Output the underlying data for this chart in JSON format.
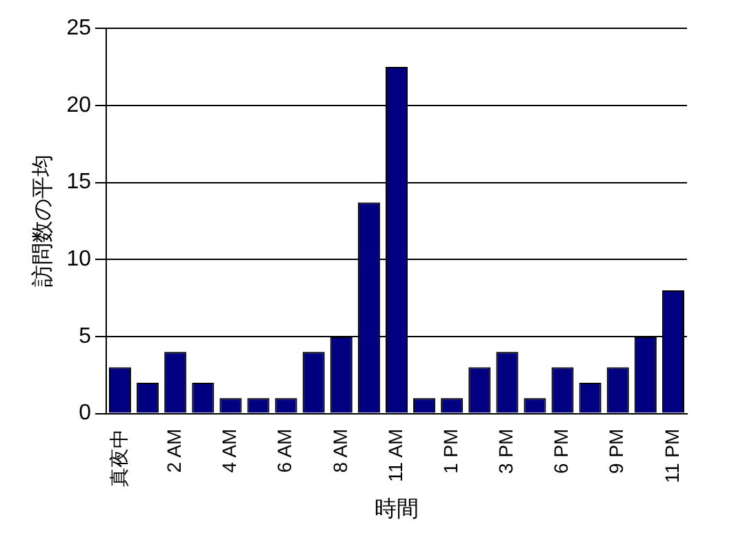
{
  "chart_data": {
    "type": "bar",
    "xlabel": "時間",
    "ylabel": "訪問数の平均",
    "categories": [
      "真夜中",
      null,
      "2 AM",
      null,
      "4 AM",
      null,
      "6 AM",
      null,
      "8 AM",
      null,
      "11 AM",
      null,
      "1 PM",
      null,
      "3 PM",
      null,
      "6 PM",
      null,
      "9 PM",
      null,
      "11 PM"
    ],
    "values": [
      3,
      2,
      4,
      2,
      1,
      1,
      1,
      4,
      5,
      13.7,
      22.5,
      1,
      1,
      3,
      4,
      1,
      3,
      2,
      3,
      5,
      8
    ],
    "color": "#000080",
    "ylim": [
      0,
      25
    ],
    "yticks": [
      0,
      5,
      10,
      15,
      20,
      25
    ],
    "grid": "y",
    "legend": false
  }
}
